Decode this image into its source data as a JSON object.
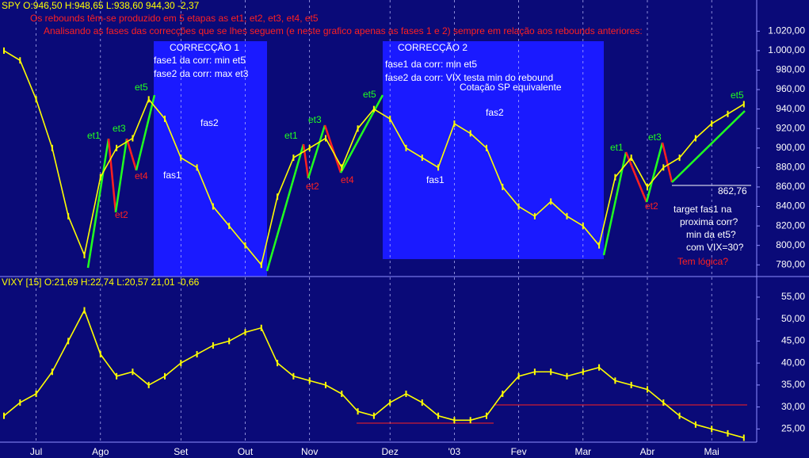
{
  "chart_data": [
    {
      "type": "line",
      "title": "SPY O:946,50 H:948,65 L:938,60 944,30 -2,37",
      "color": "#ffff00",
      "values": [
        1000,
        990,
        950,
        900,
        830,
        790,
        870,
        900,
        910,
        950,
        930,
        890,
        880,
        840,
        820,
        800,
        780,
        850,
        890,
        900,
        910,
        880,
        920,
        940,
        930,
        900,
        890,
        880,
        925,
        915,
        900,
        860,
        840,
        830,
        845,
        830,
        820,
        800,
        870,
        890,
        860,
        880,
        890,
        910,
        925,
        935,
        945
      ],
      "ylim": [
        768,
        1052
      ],
      "yticks": [
        {
          "value": 780,
          "label": "780,00"
        },
        {
          "value": 800,
          "label": "800,00"
        },
        {
          "value": 820,
          "label": "820,00"
        },
        {
          "value": 840,
          "label": "840,00"
        },
        {
          "value": 860,
          "label": "860,00"
        },
        {
          "value": 880,
          "label": "880,00"
        },
        {
          "value": 900,
          "label": "900,00"
        },
        {
          "value": 920,
          "label": "920,00"
        },
        {
          "value": 940,
          "label": "940,00"
        },
        {
          "value": 960,
          "label": "960,00"
        },
        {
          "value": 980,
          "label": "980,00"
        },
        {
          "value": 1000,
          "label": "1.000,00"
        },
        {
          "value": 1020,
          "label": "1.020,00"
        }
      ],
      "annotations": [
        "Os rebounds têm-se produzido em 5 etapas as et1, et2, et3, et4, et5",
        "Analisando as fases das correcções que se lhes seguem (e neste grafico apenas as fases 1 e 2) sempre em relação aos rebounds anteriores:",
        "CORRECÇÃO 1",
        "fase1 da corr: min et5",
        "fase2 da corr: max et3",
        "CORRECÇÃO 2",
        "fase1 da corr: min et5",
        "fase2 da corr: VIX testa min do rebound",
        "Cotação SP equivalente",
        "et1",
        "et1",
        "et1",
        "et3",
        "et3",
        "et3",
        "et5",
        "et5",
        "et5",
        "et2",
        "et2",
        "et2",
        "et4",
        "et4",
        "fas1",
        "fas1",
        "fas2",
        "fas2",
        "862,76",
        "target fas1 na",
        "proxima corr?",
        "min da et5?",
        "com VIX=30?",
        "Tem lógica?"
      ]
    },
    {
      "type": "line",
      "title": "VIXY [15] O:21,69 H:22,74 L:20,57 21,01 -0,66",
      "color": "#ffff00",
      "categories": [
        null,
        null,
        "Jul",
        null,
        null,
        null,
        "Ago",
        null,
        null,
        null,
        null,
        "Set",
        null,
        null,
        null,
        "Out",
        null,
        null,
        null,
        "Nov",
        null,
        null,
        null,
        null,
        "Dez",
        null,
        null,
        null,
        "'03",
        null,
        null,
        null,
        "Fev",
        null,
        null,
        null,
        "Mar",
        null,
        null,
        null,
        "Abr",
        null,
        null,
        null,
        "Mai",
        null,
        null
      ],
      "values": [
        28,
        31,
        33,
        38,
        45,
        52,
        42,
        37,
        38,
        35,
        37,
        40,
        42,
        44,
        45,
        47,
        48,
        40,
        37,
        36,
        35,
        33,
        29,
        28,
        31,
        33,
        31,
        28,
        27,
        27,
        28,
        33,
        37,
        38,
        38,
        37,
        38,
        39,
        36,
        35,
        34,
        31,
        28,
        26,
        25,
        24,
        23
      ],
      "ylim": [
        22,
        59.5
      ],
      "yticks": [
        {
          "value": 25,
          "label": "25,00"
        },
        {
          "value": 30,
          "label": "30,00"
        },
        {
          "value": 35,
          "label": "35,00"
        },
        {
          "value": 40,
          "label": "40,00"
        },
        {
          "value": 45,
          "label": "45,00"
        },
        {
          "value": 50,
          "label": "50,00"
        },
        {
          "value": 55,
          "label": "55,00"
        }
      ]
    }
  ]
}
